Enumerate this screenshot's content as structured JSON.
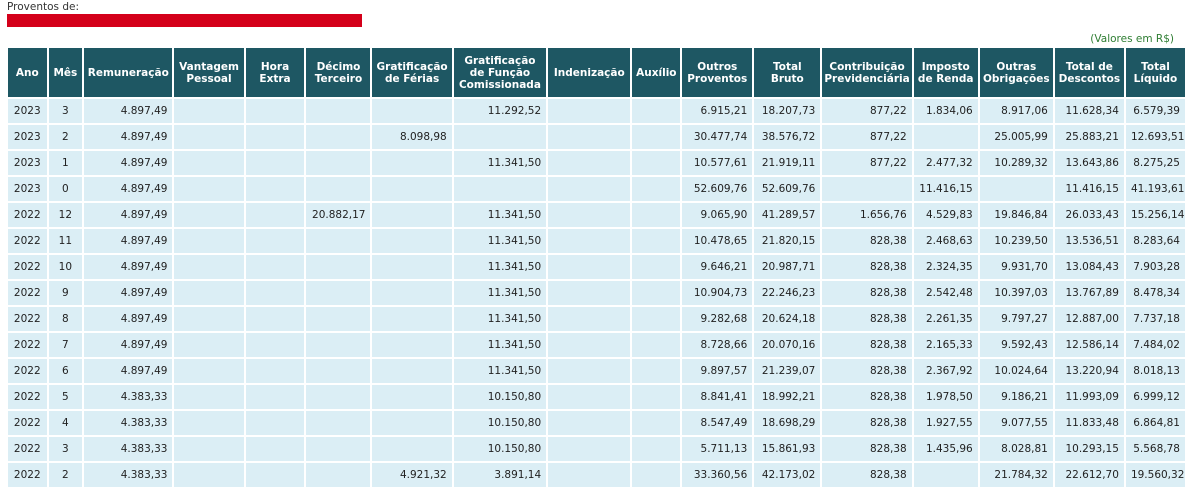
{
  "header": {
    "proventos_label": "Proventos de:",
    "valores_note": "(Valores em R$)"
  },
  "colors": {
    "header_bg": "#1e5763",
    "cell_bg": "#dbeef5",
    "redacted_bar": "#d4001a",
    "note": "#2e7d32"
  },
  "table": {
    "columns": [
      {
        "key": "ano",
        "lines": [
          "Ano"
        ]
      },
      {
        "key": "mes",
        "lines": [
          "Mês"
        ]
      },
      {
        "key": "remuneracao",
        "lines": [
          "Remuneração"
        ]
      },
      {
        "key": "vantagem_pessoal",
        "lines": [
          "Vantagem",
          "Pessoal"
        ]
      },
      {
        "key": "hora_extra",
        "lines": [
          "Hora",
          "Extra"
        ]
      },
      {
        "key": "decimo_terceiro",
        "lines": [
          "Décimo",
          "Terceiro"
        ]
      },
      {
        "key": "grat_ferias",
        "lines": [
          "Gratificação",
          "de Férias"
        ]
      },
      {
        "key": "grat_funcao",
        "lines": [
          "Gratificação",
          "de Função",
          "Comissionada"
        ]
      },
      {
        "key": "indenizacao",
        "lines": [
          "Indenização"
        ]
      },
      {
        "key": "auxilio",
        "lines": [
          "Auxílio"
        ]
      },
      {
        "key": "outros_proventos",
        "lines": [
          "Outros",
          "Proventos"
        ]
      },
      {
        "key": "total_bruto",
        "lines": [
          "Total",
          "Bruto"
        ]
      },
      {
        "key": "contribuicao",
        "lines": [
          "Contribuição",
          "Previdenciária"
        ]
      },
      {
        "key": "imposto_renda",
        "lines": [
          "Imposto",
          "de Renda"
        ]
      },
      {
        "key": "outras_obrigacoes",
        "lines": [
          "Outras",
          "Obrigações"
        ]
      },
      {
        "key": "total_descontos",
        "lines": [
          "Total de",
          "Descontos"
        ]
      },
      {
        "key": "total_liquido",
        "lines": [
          "Total",
          "Líquido"
        ]
      }
    ],
    "rows": [
      [
        "2023",
        "3",
        "4.897,49",
        "",
        "",
        "",
        "",
        "11.292,52",
        "",
        "",
        "6.915,21",
        "18.207,73",
        "877,22",
        "1.834,06",
        "8.917,06",
        "11.628,34",
        "6.579,39"
      ],
      [
        "2023",
        "2",
        "4.897,49",
        "",
        "",
        "",
        "8.098,98",
        "",
        "",
        "",
        "30.477,74",
        "38.576,72",
        "877,22",
        "",
        "25.005,99",
        "25.883,21",
        "12.693,51"
      ],
      [
        "2023",
        "1",
        "4.897,49",
        "",
        "",
        "",
        "",
        "11.341,50",
        "",
        "",
        "10.577,61",
        "21.919,11",
        "877,22",
        "2.477,32",
        "10.289,32",
        "13.643,86",
        "8.275,25"
      ],
      [
        "2023",
        "0",
        "4.897,49",
        "",
        "",
        "",
        "",
        "",
        "",
        "",
        "52.609,76",
        "52.609,76",
        "",
        "11.416,15",
        "",
        "11.416,15",
        "41.193,61"
      ],
      [
        "2022",
        "12",
        "4.897,49",
        "",
        "",
        "20.882,17",
        "",
        "11.341,50",
        "",
        "",
        "9.065,90",
        "41.289,57",
        "1.656,76",
        "4.529,83",
        "19.846,84",
        "26.033,43",
        "15.256,14"
      ],
      [
        "2022",
        "11",
        "4.897,49",
        "",
        "",
        "",
        "",
        "11.341,50",
        "",
        "",
        "10.478,65",
        "21.820,15",
        "828,38",
        "2.468,63",
        "10.239,50",
        "13.536,51",
        "8.283,64"
      ],
      [
        "2022",
        "10",
        "4.897,49",
        "",
        "",
        "",
        "",
        "11.341,50",
        "",
        "",
        "9.646,21",
        "20.987,71",
        "828,38",
        "2.324,35",
        "9.931,70",
        "13.084,43",
        "7.903,28"
      ],
      [
        "2022",
        "9",
        "4.897,49",
        "",
        "",
        "",
        "",
        "11.341,50",
        "",
        "",
        "10.904,73",
        "22.246,23",
        "828,38",
        "2.542,48",
        "10.397,03",
        "13.767,89",
        "8.478,34"
      ],
      [
        "2022",
        "8",
        "4.897,49",
        "",
        "",
        "",
        "",
        "11.341,50",
        "",
        "",
        "9.282,68",
        "20.624,18",
        "828,38",
        "2.261,35",
        "9.797,27",
        "12.887,00",
        "7.737,18"
      ],
      [
        "2022",
        "7",
        "4.897,49",
        "",
        "",
        "",
        "",
        "11.341,50",
        "",
        "",
        "8.728,66",
        "20.070,16",
        "828,38",
        "2.165,33",
        "9.592,43",
        "12.586,14",
        "7.484,02"
      ],
      [
        "2022",
        "6",
        "4.897,49",
        "",
        "",
        "",
        "",
        "11.341,50",
        "",
        "",
        "9.897,57",
        "21.239,07",
        "828,38",
        "2.367,92",
        "10.024,64",
        "13.220,94",
        "8.018,13"
      ],
      [
        "2022",
        "5",
        "4.383,33",
        "",
        "",
        "",
        "",
        "10.150,80",
        "",
        "",
        "8.841,41",
        "18.992,21",
        "828,38",
        "1.978,50",
        "9.186,21",
        "11.993,09",
        "6.999,12"
      ],
      [
        "2022",
        "4",
        "4.383,33",
        "",
        "",
        "",
        "",
        "10.150,80",
        "",
        "",
        "8.547,49",
        "18.698,29",
        "828,38",
        "1.927,55",
        "9.077,55",
        "11.833,48",
        "6.864,81"
      ],
      [
        "2022",
        "3",
        "4.383,33",
        "",
        "",
        "",
        "",
        "10.150,80",
        "",
        "",
        "5.711,13",
        "15.861,93",
        "828,38",
        "1.435,96",
        "8.028,81",
        "10.293,15",
        "5.568,78"
      ],
      [
        "2022",
        "2",
        "4.383,33",
        "",
        "",
        "",
        "4.921,32",
        "3.891,14",
        "",
        "",
        "33.360,56",
        "42.173,02",
        "828,38",
        "",
        "21.784,32",
        "22.612,70",
        "19.560,32"
      ]
    ]
  }
}
